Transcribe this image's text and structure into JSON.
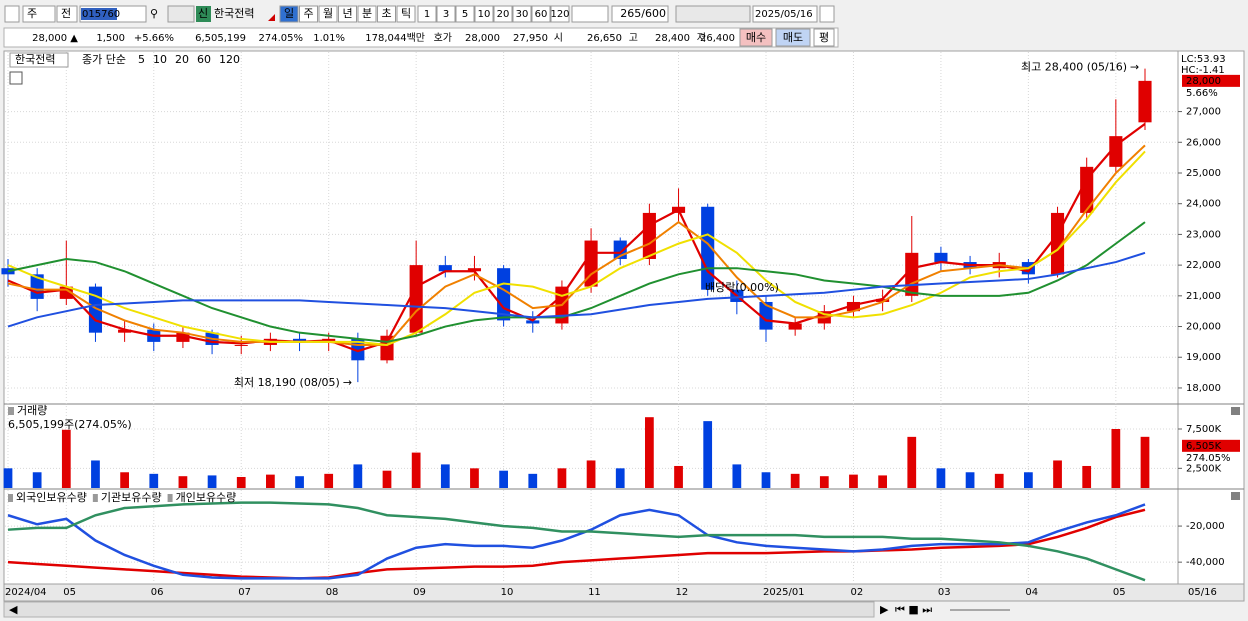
{
  "toolbar": {
    "market": "주",
    "prev": "전",
    "code": "015760",
    "badge": "신",
    "name": "한국전력",
    "periods": [
      "일",
      "주",
      "월",
      "년",
      "분",
      "초",
      "틱"
    ],
    "intervals": [
      "1",
      "3",
      "5",
      "10",
      "20",
      "30",
      "60",
      "120"
    ],
    "count": "265/600",
    "date": "2025/05/16"
  },
  "quote": [
    {
      "text": "28,000 ▲",
      "color": "#d00000"
    },
    {
      "text": "1,500",
      "color": "#d00000"
    },
    {
      "text": "+5.66%",
      "color": "#d00000"
    },
    {
      "text": "6,505,199",
      "color": "#000000"
    },
    {
      "text": "274.05%",
      "color": "#d00000"
    },
    {
      "text": "1.01%",
      "color": "#000000"
    },
    {
      "text": "178,044백만",
      "color": "#000000"
    },
    {
      "text": "호가",
      "color": "#000000"
    },
    {
      "text": "28,000",
      "color": "#d00000"
    },
    {
      "text": "27,950",
      "color": "#d00000"
    },
    {
      "text": "시",
      "color": "#000000"
    },
    {
      "text": "26,650",
      "color": "#d00000"
    },
    {
      "text": "고",
      "color": "#000000"
    },
    {
      "text": "28,400",
      "color": "#d00000"
    },
    {
      "text": "저",
      "color": "#000000"
    },
    {
      "text": "26,400",
      "color": "#0033cc"
    }
  ],
  "buttons": {
    "buy": "매수",
    "sell": "매도",
    "avg": "평"
  },
  "chart_data": [
    {
      "type": "candlestick",
      "legend_title": "한국전력",
      "legend_prefix": "종가 단순",
      "categories": [
        "2024/04",
        null,
        "05",
        null,
        null,
        "06",
        null,
        null,
        "07",
        null,
        null,
        "08",
        null,
        null,
        "09",
        null,
        null,
        "10",
        null,
        null,
        "11",
        null,
        null,
        "12",
        null,
        null,
        "2025/01",
        null,
        null,
        "02",
        null,
        null,
        "03",
        null,
        null,
        "04",
        null,
        null,
        "05",
        null
      ],
      "x_end_label": "05/16",
      "open": [
        21900,
        21700,
        20900,
        21300,
        19800,
        19900,
        19500,
        19800,
        19400,
        19400,
        19600,
        19500,
        19600,
        18900,
        19800,
        22000,
        21800,
        21900,
        20200,
        20100,
        21300,
        22800,
        22200,
        23700,
        23900,
        21200,
        20800,
        19900,
        20100,
        20500,
        20800,
        21000,
        22400,
        22100,
        21900,
        22100,
        21700,
        23700,
        25200,
        26650
      ],
      "high": [
        22200,
        21900,
        22800,
        21400,
        20200,
        20100,
        20000,
        19900,
        19700,
        19800,
        19800,
        19800,
        19800,
        19900,
        22800,
        22300,
        22300,
        22000,
        20500,
        21500,
        23200,
        22900,
        24000,
        24500,
        24000,
        21500,
        21000,
        20300,
        20700,
        21000,
        21200,
        23600,
        22600,
        22300,
        22400,
        22200,
        23900,
        25500,
        27400,
        28400
      ],
      "low": [
        21300,
        20500,
        20700,
        19500,
        19500,
        19200,
        19300,
        19100,
        19100,
        19200,
        19200,
        19200,
        18190,
        18800,
        19700,
        21600,
        21500,
        20000,
        19800,
        19900,
        21100,
        22000,
        22000,
        23400,
        21000,
        20400,
        19500,
        19700,
        19900,
        20300,
        20500,
        20800,
        21800,
        21700,
        21600,
        21400,
        21600,
        23500,
        25000,
        26400
      ],
      "close": [
        21700,
        20900,
        21300,
        19800,
        19900,
        19500,
        19800,
        19400,
        19400,
        19600,
        19500,
        19600,
        18900,
        19700,
        22000,
        21800,
        21900,
        20200,
        20100,
        21300,
        22800,
        22200,
        23700,
        23900,
        21200,
        20800,
        19900,
        20100,
        20500,
        20800,
        20900,
        22400,
        22100,
        21900,
        22100,
        21700,
        23700,
        25200,
        26200,
        28000
      ],
      "up_color": "#e00000",
      "down_color": "#0040e0",
      "series": [
        {
          "name": "5",
          "color": "#e00000",
          "values": [
            21500,
            21100,
            21200,
            20200,
            19900,
            19700,
            19700,
            19500,
            19450,
            19550,
            19500,
            19550,
            19200,
            19500,
            21300,
            21800,
            21800,
            20600,
            20200,
            21000,
            22400,
            22400,
            23300,
            23800,
            21800,
            21000,
            20200,
            20100,
            20400,
            20700,
            20900,
            21900,
            22100,
            22000,
            22000,
            21800,
            23000,
            24800,
            25900,
            26600
          ]
        },
        {
          "name": "10",
          "color": "#f08000",
          "values": [
            21400,
            21200,
            21200,
            20600,
            20200,
            19900,
            19800,
            19600,
            19500,
            19500,
            19500,
            19500,
            19400,
            19400,
            20500,
            21300,
            21700,
            21200,
            20600,
            20700,
            21700,
            22300,
            22700,
            23400,
            22700,
            21600,
            20700,
            20300,
            20300,
            20500,
            20800,
            21400,
            21800,
            21900,
            22000,
            21900,
            22500,
            23800,
            25000,
            25900
          ]
        },
        {
          "name": "20",
          "color": "#f0e000",
          "values": [
            22000,
            21600,
            21300,
            21000,
            20600,
            20300,
            20000,
            19800,
            19600,
            19500,
            19500,
            19500,
            19500,
            19400,
            19800,
            20400,
            21100,
            21400,
            21300,
            21000,
            21300,
            21900,
            22300,
            22700,
            23000,
            22400,
            21500,
            20800,
            20400,
            20300,
            20400,
            20700,
            21100,
            21600,
            21800,
            21900,
            22500,
            23500,
            24700,
            25700
          ]
        },
        {
          "name": "60",
          "color": "#209030",
          "values": [
            21800,
            22000,
            22200,
            22100,
            21800,
            21400,
            21000,
            20600,
            20300,
            20000,
            19800,
            19700,
            19600,
            19500,
            19700,
            20000,
            20200,
            20300,
            20300,
            20300,
            20600,
            21000,
            21400,
            21700,
            21900,
            21900,
            21800,
            21700,
            21500,
            21400,
            21300,
            21100,
            21000,
            21000,
            21000,
            21100,
            21500,
            22000,
            22700,
            23400
          ]
        },
        {
          "name": "120",
          "color": "#2050e0",
          "values": [
            20000,
            20300,
            20500,
            20700,
            20750,
            20800,
            20850,
            20850,
            20850,
            20850,
            20850,
            20800,
            20750,
            20700,
            20650,
            20600,
            20500,
            20400,
            20300,
            20350,
            20400,
            20550,
            20700,
            20800,
            20900,
            20950,
            21000,
            21050,
            21100,
            21200,
            21300,
            21350,
            21400,
            21450,
            21500,
            21550,
            21700,
            21900,
            22100,
            22400
          ]
        }
      ],
      "ylim": [
        17510,
        28940
      ],
      "yticks": [
        {
          "value": 18000,
          "label": "18,000"
        },
        {
          "value": 19000,
          "label": "19,000"
        },
        {
          "value": 20000,
          "label": "20,000"
        },
        {
          "value": 21000,
          "label": "21,000"
        },
        {
          "value": 22000,
          "label": "22,000"
        },
        {
          "value": 23000,
          "label": "23,000"
        },
        {
          "value": 24000,
          "label": "24,000"
        },
        {
          "value": 25000,
          "label": "25,000"
        },
        {
          "value": 26000,
          "label": "26,000"
        },
        {
          "value": 27000,
          "label": "27,000"
        }
      ],
      "side_labels": [
        "LC:53.93",
        "HC:-1.41"
      ],
      "last_price_label": "28,000",
      "last_change_label": "5.66%",
      "annotations": [
        "최고 28,400 (05/16)",
        "최저 18,190 (08/05)",
        "배당락(0.00%)"
      ],
      "grid": true
    },
    {
      "type": "bar",
      "title": "거래량",
      "subtitle": "6,505,199주(274.05%)",
      "values": [
        2500,
        2000,
        7400,
        3500,
        2000,
        1800,
        1500,
        1600,
        1400,
        1700,
        1500,
        1800,
        3000,
        2200,
        4500,
        3000,
        2500,
        2200,
        1800,
        2500,
        3500,
        2500,
        9000,
        2800,
        8500,
        3000,
        2000,
        1800,
        1500,
        1700,
        1600,
        6500,
        2500,
        2000,
        1800,
        2000,
        3500,
        2800,
        7500,
        6505.199
      ],
      "value_labels": [
        null,
        null,
        null,
        null,
        null,
        null,
        null,
        null,
        null,
        null,
        null,
        null,
        null,
        null,
        null,
        null,
        null,
        null,
        null,
        null,
        null,
        null,
        null,
        null,
        null,
        null,
        null,
        null,
        null,
        null,
        null,
        null,
        null,
        null,
        null,
        null,
        null,
        null,
        null,
        "6,505K"
      ],
      "last_ratio_label": "274.05%",
      "ylim": [
        0,
        10550
      ],
      "yticks": [
        {
          "value": 2500,
          "label": "2,500K"
        },
        {
          "value": 7500,
          "label": "7,500K"
        }
      ]
    },
    {
      "type": "line",
      "series": [
        {
          "name": "외국인보유수량",
          "color": "#e00000",
          "values": [
            -40000,
            -41000,
            -42000,
            -43000,
            -44000,
            -45000,
            -46000,
            -47000,
            -48000,
            -48500,
            -49000,
            -48500,
            -46000,
            -44000,
            -43500,
            -43000,
            -42500,
            -42500,
            -42000,
            -40000,
            -39000,
            -38000,
            -37000,
            -36000,
            -35000,
            -35000,
            -35000,
            -34500,
            -34000,
            -34000,
            -33500,
            -33000,
            -32000,
            -31500,
            -31000,
            -30000,
            -26000,
            -21000,
            -15000,
            -11000
          ]
        },
        {
          "name": "기관보유수량",
          "color": "#2050e0",
          "values": [
            -14000,
            -19000,
            -16000,
            -28000,
            -36000,
            -42000,
            -47000,
            -48500,
            -49000,
            -49000,
            -49000,
            -49000,
            -47000,
            -38000,
            -32000,
            -30000,
            -31000,
            -31000,
            -32000,
            -28000,
            -22000,
            -14000,
            -11000,
            -14000,
            -25000,
            -29000,
            -31000,
            -32000,
            -33000,
            -34000,
            -33000,
            -31000,
            -30000,
            -30000,
            -30000,
            -29000,
            -23000,
            -18000,
            -14000,
            -8000
          ]
        },
        {
          "name": "개인보유수량",
          "color": "#309060",
          "values": [
            -22000,
            -21000,
            -21000,
            -14000,
            -10000,
            -9000,
            -8000,
            -7500,
            -7000,
            -7000,
            -7500,
            -8000,
            -10000,
            -14000,
            -15000,
            -16000,
            -18000,
            -20000,
            -21000,
            -23000,
            -23000,
            -24000,
            -25000,
            -26000,
            -25000,
            -25000,
            -25000,
            -25000,
            -26000,
            -26000,
            -26000,
            -27000,
            -27000,
            -28000,
            -29000,
            -31000,
            -34000,
            -38000,
            -44000,
            -50000
          ]
        }
      ],
      "ylim": [
        -51000,
        0
      ],
      "yticks": [
        {
          "value": -20000,
          "label": "-20,000"
        },
        {
          "value": -40000,
          "label": "-40,000"
        }
      ]
    }
  ]
}
